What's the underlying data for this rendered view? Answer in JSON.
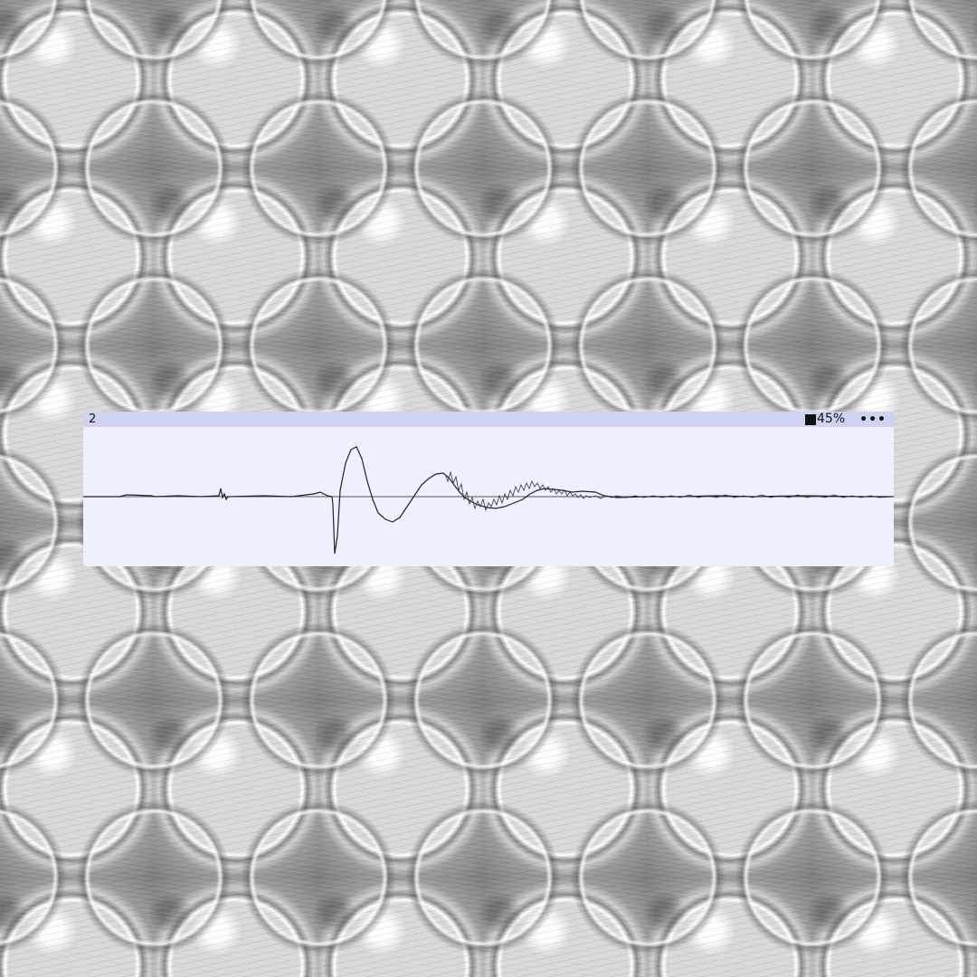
{
  "background": {
    "name": "bubble-wrap-photo"
  },
  "player": {
    "track_number": "2",
    "volume_percent": "45%",
    "volume_icon": "volume-square-icon",
    "menu_label": "•••",
    "menu_icon": "more-horizontal-icon",
    "colors": {
      "panel": "#eef0fd",
      "titlebar": "#cdd3f1",
      "waveform": "#222222"
    }
  }
}
